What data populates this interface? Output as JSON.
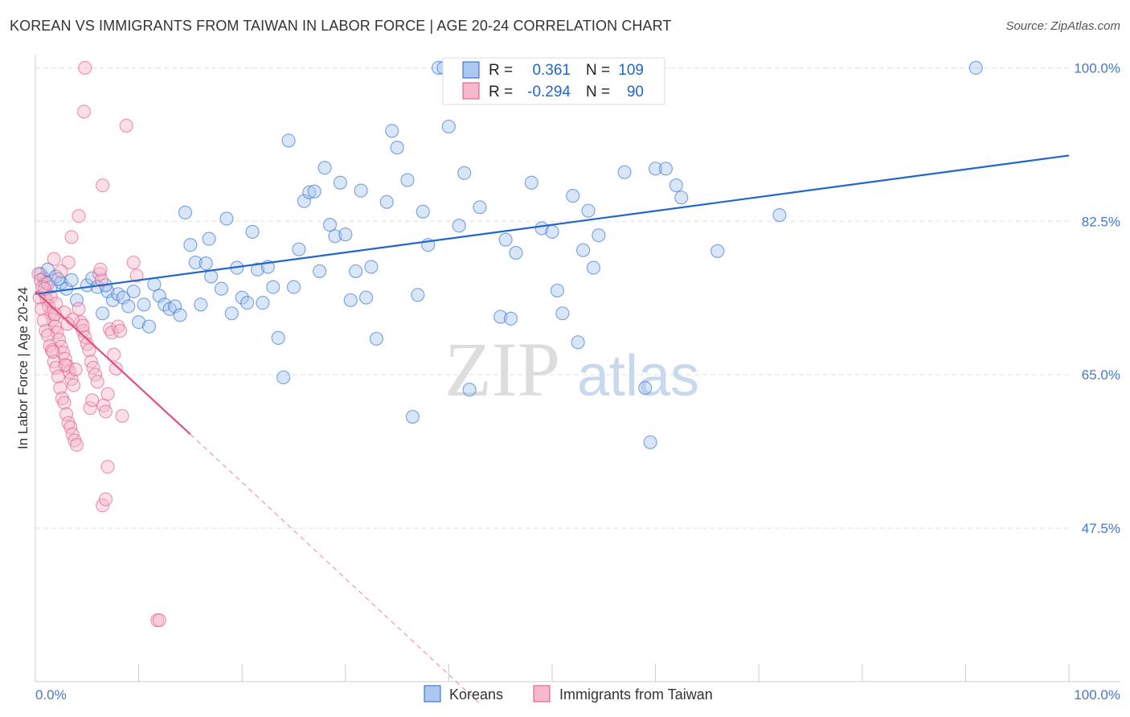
{
  "title": "KOREAN VS IMMIGRANTS FROM TAIWAN IN LABOR FORCE | AGE 20-24 CORRELATION CHART",
  "source": "Source: ZipAtlas.com",
  "watermark": {
    "zip": "ZIP",
    "atlas": "atlas"
  },
  "colors": {
    "blue": "#2266cc",
    "blue_fill": "#aac8f0",
    "pink": "#e0507e",
    "pink_fill": "#f5b8cc",
    "axis_text": "#4477cc",
    "grid": "#e0e0e0"
  },
  "chart_data": {
    "type": "scatter",
    "xlabel": "",
    "ylabel": "In Labor Force | Age 20-24",
    "xlim": [
      0,
      100
    ],
    "ylim": [
      30,
      101.5
    ],
    "x_tick_labels": {
      "min": "0.0%",
      "max": "100.0%"
    },
    "y_ticks": [
      {
        "value": 100,
        "label": "100.0%"
      },
      {
        "value": 82.5,
        "label": "82.5%"
      },
      {
        "value": 65,
        "label": "65.0%"
      },
      {
        "value": 47.5,
        "label": "47.5%"
      }
    ],
    "legend_stats": [
      {
        "r_label": "R =",
        "r_value": "0.361",
        "n_label": "N =",
        "n_value": "109"
      },
      {
        "r_label": "R =",
        "r_value": "-0.294",
        "n_label": "N =",
        "n_value": "90"
      }
    ],
    "series": [
      {
        "name": "Koreans",
        "color": "blue",
        "trend": {
          "x": [
            0,
            100
          ],
          "y": [
            74.2,
            90.0
          ],
          "dashed_to": null
        },
        "points": [
          [
            0.5,
            76.5
          ],
          [
            0.8,
            76
          ],
          [
            1,
            75.5
          ],
          [
            1.2,
            77
          ],
          [
            1.5,
            75
          ],
          [
            2,
            76.2
          ],
          [
            2.5,
            75.5
          ],
          [
            3,
            74.8
          ],
          [
            3.5,
            75.8
          ],
          [
            4,
            73.5
          ],
          [
            5,
            75.2
          ],
          [
            5.5,
            76
          ],
          [
            6,
            75
          ],
          [
            6.5,
            72
          ],
          [
            7,
            74.5
          ],
          [
            7.5,
            73.5
          ],
          [
            8,
            74.2
          ],
          [
            8.5,
            73.8
          ],
          [
            9,
            72.8
          ],
          [
            9.5,
            74.5
          ],
          [
            10,
            71
          ],
          [
            10.5,
            73
          ],
          [
            11,
            70.5
          ],
          [
            11.5,
            75.3
          ],
          [
            12,
            74
          ],
          [
            12.5,
            73
          ],
          [
            13,
            72.5
          ],
          [
            13.5,
            72.8
          ],
          [
            14,
            71.8
          ],
          [
            14.5,
            83.5
          ],
          [
            15,
            79.8
          ],
          [
            15.5,
            77.8
          ],
          [
            16,
            73
          ],
          [
            16.5,
            77.7
          ],
          [
            16.8,
            80.5
          ],
          [
            17,
            76.2
          ],
          [
            18,
            74.8
          ],
          [
            18.5,
            82.8
          ],
          [
            19,
            72
          ],
          [
            19.5,
            77.2
          ],
          [
            20,
            73.8
          ],
          [
            20.5,
            73.2
          ],
          [
            21,
            81.3
          ],
          [
            21.5,
            77
          ],
          [
            22,
            73.2
          ],
          [
            22.5,
            77.3
          ],
          [
            23,
            75
          ],
          [
            23.5,
            69.2
          ],
          [
            24,
            64.7
          ],
          [
            24.5,
            91.7
          ],
          [
            25,
            75
          ],
          [
            25.5,
            79.3
          ],
          [
            26,
            84.8
          ],
          [
            26.5,
            85.8
          ],
          [
            27,
            85.9
          ],
          [
            27.5,
            76.8
          ],
          [
            28,
            88.6
          ],
          [
            28.5,
            82.1
          ],
          [
            29,
            80.8
          ],
          [
            29.5,
            86.9
          ],
          [
            30,
            81
          ],
          [
            30.5,
            73.5
          ],
          [
            31,
            76.8
          ],
          [
            31.5,
            86
          ],
          [
            32,
            73.8
          ],
          [
            32.5,
            77.3
          ],
          [
            33,
            69.1
          ],
          [
            34,
            84.7
          ],
          [
            34.5,
            92.8
          ],
          [
            35,
            90.9
          ],
          [
            36,
            87.2
          ],
          [
            36.5,
            60.2
          ],
          [
            37,
            74.1
          ],
          [
            37.5,
            83.6
          ],
          [
            38,
            79.8
          ],
          [
            39,
            100
          ],
          [
            39.5,
            100
          ],
          [
            40,
            93.3
          ],
          [
            41,
            82
          ],
          [
            41.5,
            88
          ],
          [
            42,
            63.3
          ],
          [
            43,
            84.1
          ],
          [
            45,
            71.6
          ],
          [
            45.5,
            80.4
          ],
          [
            46,
            71.4
          ],
          [
            46.5,
            78.9
          ],
          [
            48,
            86.9
          ],
          [
            49,
            81.7
          ],
          [
            50,
            81.3
          ],
          [
            50.5,
            74.6
          ],
          [
            51,
            72
          ],
          [
            52,
            85.4
          ],
          [
            52.5,
            68.7
          ],
          [
            53,
            79.2
          ],
          [
            53.5,
            83.7
          ],
          [
            54,
            77.2
          ],
          [
            54.5,
            80.9
          ],
          [
            57,
            88.1
          ],
          [
            59,
            63.5
          ],
          [
            59.5,
            57.3
          ],
          [
            60,
            88.5
          ],
          [
            61,
            88.5
          ],
          [
            62,
            86.6
          ],
          [
            62.5,
            85.2
          ],
          [
            66,
            79.1
          ],
          [
            72,
            83.2
          ],
          [
            91,
            100
          ],
          [
            2.2,
            75.9
          ],
          [
            6.8,
            75.2
          ]
        ]
      },
      {
        "name": "Immigrants from Taiwan",
        "color": "pink",
        "trend": {
          "x": [
            0,
            15
          ],
          "y": [
            74.5,
            58.2
          ],
          "dashed_to": [
            43,
            27.5
          ]
        },
        "points": [
          [
            0.3,
            76.5
          ],
          [
            0.5,
            75.8
          ],
          [
            0.7,
            75
          ],
          [
            0.9,
            74.2
          ],
          [
            1.1,
            73.5
          ],
          [
            1.3,
            72.8
          ],
          [
            1.5,
            72
          ],
          [
            1.7,
            71.3
          ],
          [
            1.9,
            70.5
          ],
          [
            2.1,
            69.8
          ],
          [
            2.3,
            69
          ],
          [
            2.5,
            68.2
          ],
          [
            2.7,
            67.5
          ],
          [
            2.9,
            66.8
          ],
          [
            3.1,
            66
          ],
          [
            3.3,
            65.3
          ],
          [
            3.5,
            64.5
          ],
          [
            3.7,
            63.8
          ],
          [
            0.4,
            73.8
          ],
          [
            0.6,
            72.5
          ],
          [
            0.8,
            71.2
          ],
          [
            1,
            70
          ],
          [
            1.2,
            69.5
          ],
          [
            1.4,
            68.3
          ],
          [
            1.6,
            67.8
          ],
          [
            1.8,
            66.5
          ],
          [
            2,
            65.8
          ],
          [
            2.2,
            64.8
          ],
          [
            2.4,
            63.5
          ],
          [
            2.6,
            62.3
          ],
          [
            2.8,
            61.8
          ],
          [
            3,
            60.5
          ],
          [
            3.2,
            59.5
          ],
          [
            3.4,
            59
          ],
          [
            3.6,
            58.2
          ],
          [
            3.8,
            57.5
          ],
          [
            4,
            57
          ],
          [
            4.2,
            72.5
          ],
          [
            4.4,
            71
          ],
          [
            4.6,
            70
          ],
          [
            4.8,
            69.3
          ],
          [
            5,
            68.5
          ],
          [
            5.2,
            67.8
          ],
          [
            5.4,
            66.5
          ],
          [
            5.6,
            65.8
          ],
          [
            5.8,
            65
          ],
          [
            6,
            64.2
          ],
          [
            6.2,
            76.5
          ],
          [
            6.4,
            75.8
          ],
          [
            6.6,
            61.5
          ],
          [
            6.8,
            60.8
          ],
          [
            7,
            62.8
          ],
          [
            7.2,
            70.2
          ],
          [
            7.4,
            69.8
          ],
          [
            7.6,
            67.3
          ],
          [
            7.8,
            65.7
          ],
          [
            8,
            70.5
          ],
          [
            8.2,
            70
          ],
          [
            8.4,
            60.3
          ],
          [
            6.5,
            50.1
          ],
          [
            6.8,
            50.8
          ],
          [
            7,
            54.5
          ],
          [
            11.8,
            37
          ],
          [
            12,
            37
          ],
          [
            4.8,
            100
          ],
          [
            4.7,
            95
          ],
          [
            8.8,
            93.4
          ],
          [
            6.5,
            86.6
          ],
          [
            4.2,
            83.1
          ],
          [
            3.5,
            80.7
          ],
          [
            1.8,
            78.2
          ],
          [
            3.2,
            77.8
          ],
          [
            6.3,
            77
          ],
          [
            9.5,
            77.8
          ],
          [
            9.8,
            76.3
          ],
          [
            2.5,
            76.8
          ],
          [
            1.2,
            75.4
          ],
          [
            0.9,
            74.8
          ],
          [
            1.5,
            73.9
          ],
          [
            2,
            73.1
          ],
          [
            2.8,
            72.1
          ],
          [
            3.6,
            71.3
          ],
          [
            4.6,
            70.6
          ],
          [
            1.7,
            67.6
          ],
          [
            2.9,
            66.1
          ],
          [
            3.9,
            65.6
          ],
          [
            5.3,
            61.2
          ],
          [
            5.5,
            62.1
          ],
          [
            1.9,
            71.9
          ],
          [
            3.1,
            70.8
          ]
        ]
      }
    ]
  },
  "legend": [
    {
      "label": "Koreans",
      "color": "blue"
    },
    {
      "label": "Immigrants from Taiwan",
      "color": "pink"
    }
  ]
}
